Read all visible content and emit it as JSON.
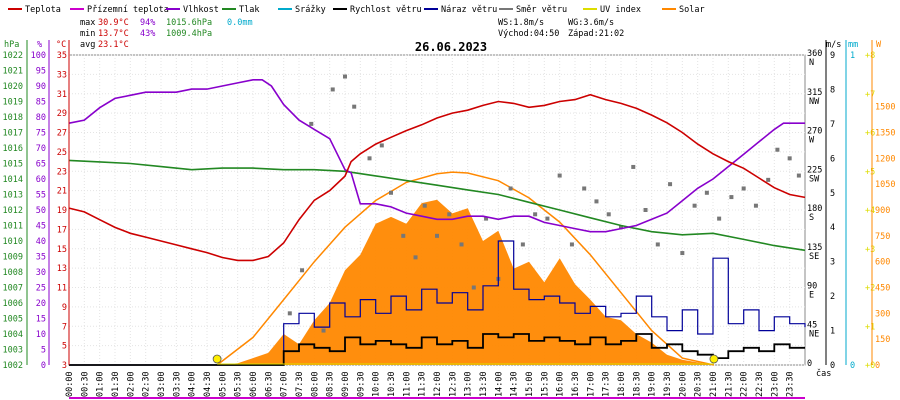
{
  "chart_data": {
    "type": "line",
    "title": "26.06.2023",
    "legend": [
      {
        "name": "Teplota",
        "color": "#cc0000"
      },
      {
        "name": "Přízemní teplota",
        "color": "#cc00cc"
      },
      {
        "name": "Vlhkost",
        "color": "#8800cc"
      },
      {
        "name": "Tlak",
        "color": "#228822"
      },
      {
        "name": "Srážky",
        "color": "#00aacc"
      },
      {
        "name": "Rychlost větru",
        "color": "#000000"
      },
      {
        "name": "Náraz větru",
        "color": "#000099"
      },
      {
        "name": "Směr větru",
        "color": "#777777"
      },
      {
        "name": "UV index",
        "color": "#dddd00"
      },
      {
        "name": "Solar",
        "color": "#ff8800"
      }
    ],
    "stats": {
      "max_label": "max",
      "max_temp": "30.9°C",
      "max_hum": "94%",
      "max_press": "1015.6hPa",
      "rain": "0.0mm",
      "min_label": "min",
      "min_temp": "13.7°C",
      "min_hum": "43%",
      "min_press": "1009.4hPa",
      "avg_label": "avg",
      "avg_temp": "23.1°C",
      "ws": "WS:1.8m/s",
      "wg": "WG:3.6m/s",
      "sunrise": "Východ:04:50",
      "sunset": "Západ:21:02"
    },
    "axes": {
      "hpa_unit": "hPa",
      "pct_unit": "%",
      "temp_unit": "°C",
      "wind_unit": "m/s",
      "rain_unit": "mm",
      "solar_unit": "W",
      "x_unit": "čas",
      "hpa_ticks": [
        "1022",
        "1021",
        "1020",
        "1019",
        "1018",
        "1017",
        "1016",
        "1015",
        "1014",
        "1013",
        "1012",
        "1011",
        "1010",
        "1009",
        "1008",
        "1007",
        "1006",
        "1005",
        "1004",
        "1003",
        "1002"
      ],
      "hpa_range": [
        1002,
        1022
      ],
      "pct_ticks": [
        "100",
        "95",
        "90",
        "85",
        "80",
        "75",
        "70",
        "65",
        "60",
        "55",
        "50",
        "45",
        "40",
        "35",
        "30",
        "25",
        "20",
        "15",
        "10",
        "5",
        "0"
      ],
      "pct_range": [
        0,
        100
      ],
      "temp_ticks": [
        "35",
        "33",
        "31",
        "29",
        "27",
        "25",
        "23",
        "21",
        "19",
        "17",
        "15",
        "13",
        "11",
        "9",
        "7",
        "5",
        "3"
      ],
      "temp_range": [
        3,
        35
      ],
      "dir_ticks": [
        {
          "v": "360",
          "l": "N"
        },
        {
          "v": "315",
          "l": "NW"
        },
        {
          "v": "270",
          "l": "W"
        },
        {
          "v": "225",
          "l": "SW"
        },
        {
          "v": "180",
          "l": "S"
        },
        {
          "v": "135",
          "l": "SE"
        },
        {
          "v": "90",
          "l": "E"
        },
        {
          "v": "45",
          "l": "NE"
        },
        {
          "v": "0",
          "l": ""
        }
      ],
      "dir_range": [
        0,
        360
      ],
      "wind_ticks": [
        "9",
        "8",
        "7",
        "6",
        "5",
        "4",
        "3",
        "2",
        "1",
        "0"
      ],
      "wind_range": [
        0,
        9
      ],
      "rain_ticks": [
        "1",
        "0"
      ],
      "uv_ticks": [
        "+8",
        "+7",
        "+6",
        "+5",
        "+4",
        "+3",
        "+2",
        "+1",
        "+0"
      ],
      "uv_range": [
        0,
        8
      ],
      "solar_ticks": [
        "1500",
        "1350",
        "1200",
        "1050",
        "900",
        "750",
        "600",
        "450",
        "300",
        "150",
        "0"
      ],
      "solar_range": [
        0,
        1800
      ],
      "x_range": [
        0,
        24
      ],
      "x_ticks": [
        "00:00",
        "00:30",
        "01:00",
        "01:30",
        "02:00",
        "02:30",
        "03:00",
        "03:30",
        "04:00",
        "04:30",
        "05:00",
        "05:30",
        "06:00",
        "06:30",
        "07:00",
        "07:30",
        "08:00",
        "08:30",
        "09:00",
        "09:30",
        "10:00",
        "10:30",
        "11:00",
        "11:30",
        "12:00",
        "12:30",
        "13:00",
        "13:30",
        "14:00",
        "14:30",
        "15:00",
        "15:30",
        "16:00",
        "16:30",
        "17:00",
        "17:30",
        "18:00",
        "18:30",
        "19:00",
        "19:30",
        "20:00",
        "20:30",
        "21:00",
        "21:30",
        "22:00",
        "22:30",
        "23:00",
        "23:30"
      ]
    },
    "series": {
      "temperature": [
        [
          0,
          19.2
        ],
        [
          0.5,
          18.8
        ],
        [
          1,
          18
        ],
        [
          1.5,
          17.2
        ],
        [
          2,
          16.6
        ],
        [
          2.5,
          16.2
        ],
        [
          3,
          15.8
        ],
        [
          3.5,
          15.4
        ],
        [
          4,
          15.0
        ],
        [
          4.5,
          14.6
        ],
        [
          5,
          14.1
        ],
        [
          5.5,
          13.8
        ],
        [
          6,
          13.8
        ],
        [
          6.5,
          14.2
        ],
        [
          7,
          15.6
        ],
        [
          7.5,
          18.0
        ],
        [
          8,
          20.0
        ],
        [
          8.5,
          21.0
        ],
        [
          9,
          22.5
        ],
        [
          9.2,
          24.0
        ],
        [
          9.5,
          24.8
        ],
        [
          10,
          25.8
        ],
        [
          10.5,
          26.5
        ],
        [
          11,
          27.2
        ],
        [
          11.5,
          27.8
        ],
        [
          12,
          28.5
        ],
        [
          12.5,
          29.0
        ],
        [
          13,
          29.3
        ],
        [
          13.5,
          29.8
        ],
        [
          14,
          30.2
        ],
        [
          14.5,
          30.0
        ],
        [
          15,
          29.6
        ],
        [
          15.5,
          29.8
        ],
        [
          16,
          30.2
        ],
        [
          16.5,
          30.4
        ],
        [
          17,
          30.9
        ],
        [
          17.5,
          30.4
        ],
        [
          18,
          30.0
        ],
        [
          18.5,
          29.5
        ],
        [
          19,
          28.8
        ],
        [
          19.5,
          28.0
        ],
        [
          20,
          27.0
        ],
        [
          20.5,
          25.8
        ],
        [
          21,
          24.8
        ],
        [
          21.5,
          24.0
        ],
        [
          22,
          23.3
        ],
        [
          22.5,
          22.3
        ],
        [
          23,
          21.3
        ],
        [
          23.5,
          20.6
        ],
        [
          24,
          20.3
        ]
      ],
      "humidity": [
        [
          0,
          78
        ],
        [
          0.5,
          79
        ],
        [
          1,
          83
        ],
        [
          1.5,
          86
        ],
        [
          2,
          87
        ],
        [
          2.5,
          88
        ],
        [
          3,
          88
        ],
        [
          3.5,
          88
        ],
        [
          4,
          89
        ],
        [
          4.5,
          89
        ],
        [
          5,
          90
        ],
        [
          5.5,
          91
        ],
        [
          6,
          92
        ],
        [
          6.3,
          92
        ],
        [
          6.6,
          90
        ],
        [
          7,
          84
        ],
        [
          7.5,
          79
        ],
        [
          8,
          76
        ],
        [
          8.5,
          73
        ],
        [
          9,
          63
        ],
        [
          9.2,
          62
        ],
        [
          9.5,
          52
        ],
        [
          10,
          52
        ],
        [
          10.5,
          51
        ],
        [
          11,
          49
        ],
        [
          11.5,
          48
        ],
        [
          12,
          47
        ],
        [
          12.5,
          47
        ],
        [
          13,
          48
        ],
        [
          13.5,
          48
        ],
        [
          14,
          47
        ],
        [
          14.5,
          48
        ],
        [
          15,
          48
        ],
        [
          15.5,
          46
        ],
        [
          16,
          45
        ],
        [
          16.5,
          44
        ],
        [
          17,
          43
        ],
        [
          17.5,
          43
        ],
        [
          18,
          44
        ],
        [
          18.5,
          45
        ],
        [
          19,
          47
        ],
        [
          19.5,
          49
        ],
        [
          20,
          53
        ],
        [
          20.5,
          57
        ],
        [
          21,
          60
        ],
        [
          21.5,
          64
        ],
        [
          22,
          68
        ],
        [
          22.5,
          72
        ],
        [
          23,
          76
        ],
        [
          23.3,
          78
        ],
        [
          24,
          78
        ]
      ],
      "pressure": [
        [
          0,
          1015.2
        ],
        [
          1,
          1015.1
        ],
        [
          2,
          1015.0
        ],
        [
          3,
          1014.8
        ],
        [
          4,
          1014.6
        ],
        [
          5,
          1014.7
        ],
        [
          6,
          1014.7
        ],
        [
          7,
          1014.6
        ],
        [
          8,
          1014.6
        ],
        [
          9,
          1014.5
        ],
        [
          10,
          1014.2
        ],
        [
          11,
          1013.9
        ],
        [
          12,
          1013.6
        ],
        [
          13,
          1013.3
        ],
        [
          14,
          1013.0
        ],
        [
          15,
          1012.5
        ],
        [
          16,
          1012.0
        ],
        [
          17,
          1011.5
        ],
        [
          18,
          1011.0
        ],
        [
          19,
          1010.6
        ],
        [
          20,
          1010.4
        ],
        [
          21,
          1010.5
        ],
        [
          22,
          1010.1
        ],
        [
          23,
          1009.7
        ],
        [
          24,
          1009.4
        ]
      ],
      "solar_theoretical": [
        [
          4.83,
          0
        ],
        [
          6,
          160
        ],
        [
          7,
          380
        ],
        [
          8,
          600
        ],
        [
          9,
          800
        ],
        [
          10,
          955
        ],
        [
          11,
          1060
        ],
        [
          12,
          1110
        ],
        [
          12.5,
          1120
        ],
        [
          13,
          1115
        ],
        [
          14,
          1070
        ],
        [
          15,
          970
        ],
        [
          16,
          830
        ],
        [
          17,
          640
        ],
        [
          18,
          420
        ],
        [
          19,
          200
        ],
        [
          20,
          40
        ],
        [
          21.03,
          0
        ]
      ],
      "solar_measured": [
        [
          4.8,
          0
        ],
        [
          5.5,
          10
        ],
        [
          6,
          40
        ],
        [
          6.5,
          70
        ],
        [
          7,
          180
        ],
        [
          7.5,
          120
        ],
        [
          8,
          260
        ],
        [
          8.5,
          360
        ],
        [
          9,
          550
        ],
        [
          9.5,
          640
        ],
        [
          10,
          820
        ],
        [
          10.5,
          860
        ],
        [
          11,
          820
        ],
        [
          11.5,
          940
        ],
        [
          12,
          960
        ],
        [
          12.5,
          880
        ],
        [
          13,
          910
        ],
        [
          13.5,
          720
        ],
        [
          14,
          780
        ],
        [
          14.5,
          560
        ],
        [
          15,
          600
        ],
        [
          15.5,
          480
        ],
        [
          16,
          620
        ],
        [
          16.5,
          470
        ],
        [
          17,
          380
        ],
        [
          17.5,
          280
        ],
        [
          18,
          260
        ],
        [
          18.5,
          180
        ],
        [
          19,
          130
        ],
        [
          19.5,
          60
        ],
        [
          20,
          30
        ],
        [
          21,
          0
        ]
      ],
      "wind_speed": [
        [
          0,
          0
        ],
        [
          6.5,
          0
        ],
        [
          7,
          0.4
        ],
        [
          7.5,
          0.6
        ],
        [
          8,
          0.5
        ],
        [
          8.5,
          0.4
        ],
        [
          9,
          0.8
        ],
        [
          9.5,
          0.6
        ],
        [
          10,
          0.7
        ],
        [
          10.5,
          0.6
        ],
        [
          11,
          0.5
        ],
        [
          11.5,
          0.8
        ],
        [
          12,
          0.6
        ],
        [
          12.5,
          0.7
        ],
        [
          13,
          0.5
        ],
        [
          13.5,
          0.9
        ],
        [
          14,
          0.8
        ],
        [
          14.5,
          0.9
        ],
        [
          15,
          0.7
        ],
        [
          15.5,
          0.8
        ],
        [
          16,
          0.7
        ],
        [
          16.5,
          0.6
        ],
        [
          17,
          0.8
        ],
        [
          17.5,
          0.6
        ],
        [
          18,
          0.7
        ],
        [
          18.5,
          0.9
        ],
        [
          19,
          0.5
        ],
        [
          19.5,
          0.6
        ],
        [
          20,
          0.4
        ],
        [
          20.5,
          0.3
        ],
        [
          21,
          0.2
        ],
        [
          21.5,
          0.4
        ],
        [
          22,
          0.5
        ],
        [
          22.5,
          0.4
        ],
        [
          23,
          0.6
        ],
        [
          23.5,
          0.5
        ],
        [
          24,
          0.5
        ]
      ],
      "wind_gust": [
        [
          0,
          0
        ],
        [
          6.5,
          0
        ],
        [
          7,
          1.2
        ],
        [
          7.5,
          1.5
        ],
        [
          8,
          1.1
        ],
        [
          8.5,
          1.8
        ],
        [
          9,
          1.4
        ],
        [
          9.5,
          1.9
        ],
        [
          10,
          1.5
        ],
        [
          10.5,
          2.0
        ],
        [
          11,
          1.6
        ],
        [
          11.5,
          2.2
        ],
        [
          12,
          1.8
        ],
        [
          12.5,
          2.1
        ],
        [
          13,
          1.6
        ],
        [
          13.5,
          2.3
        ],
        [
          14,
          3.6
        ],
        [
          14.5,
          2.2
        ],
        [
          15,
          1.9
        ],
        [
          15.5,
          2.0
        ],
        [
          16,
          1.8
        ],
        [
          16.5,
          1.5
        ],
        [
          17,
          1.7
        ],
        [
          17.5,
          1.4
        ],
        [
          18,
          1.5
        ],
        [
          18.5,
          2.0
        ],
        [
          19,
          1.4
        ],
        [
          19.5,
          1.0
        ],
        [
          20,
          1.6
        ],
        [
          20.5,
          0.9
        ],
        [
          21,
          3.1
        ],
        [
          21.5,
          1.2
        ],
        [
          22,
          1.6
        ],
        [
          22.5,
          1.0
        ],
        [
          23,
          1.4
        ],
        [
          23.5,
          1.2
        ],
        [
          24,
          1.1
        ]
      ],
      "wind_dir": [
        [
          7.2,
          60
        ],
        [
          7.6,
          110
        ],
        [
          7.9,
          280
        ],
        [
          8.3,
          40
        ],
        [
          8.6,
          320
        ],
        [
          9.0,
          335
        ],
        [
          9.3,
          300
        ],
        [
          9.8,
          240
        ],
        [
          10.2,
          255
        ],
        [
          10.5,
          200
        ],
        [
          10.9,
          150
        ],
        [
          11.3,
          125
        ],
        [
          11.6,
          185
        ],
        [
          12.0,
          150
        ],
        [
          12.4,
          175
        ],
        [
          12.8,
          140
        ],
        [
          13.2,
          90
        ],
        [
          13.6,
          170
        ],
        [
          14.0,
          100
        ],
        [
          14.4,
          205
        ],
        [
          14.8,
          140
        ],
        [
          15.2,
          175
        ],
        [
          15.6,
          170
        ],
        [
          16.0,
          220
        ],
        [
          16.4,
          140
        ],
        [
          16.8,
          205
        ],
        [
          17.2,
          190
        ],
        [
          17.6,
          175
        ],
        [
          18.0,
          160
        ],
        [
          18.4,
          230
        ],
        [
          18.8,
          180
        ],
        [
          19.2,
          140
        ],
        [
          19.6,
          210
        ],
        [
          20.0,
          130
        ],
        [
          20.4,
          185
        ],
        [
          20.8,
          200
        ],
        [
          21.2,
          170
        ],
        [
          21.6,
          195
        ],
        [
          22.0,
          205
        ],
        [
          22.4,
          185
        ],
        [
          22.8,
          215
        ],
        [
          23.1,
          250
        ],
        [
          23.5,
          240
        ],
        [
          23.8,
          220
        ]
      ],
      "uv": [
        [
          4.83,
          0
        ],
        [
          21.03,
          0
        ]
      ],
      "ground_temp": []
    }
  }
}
